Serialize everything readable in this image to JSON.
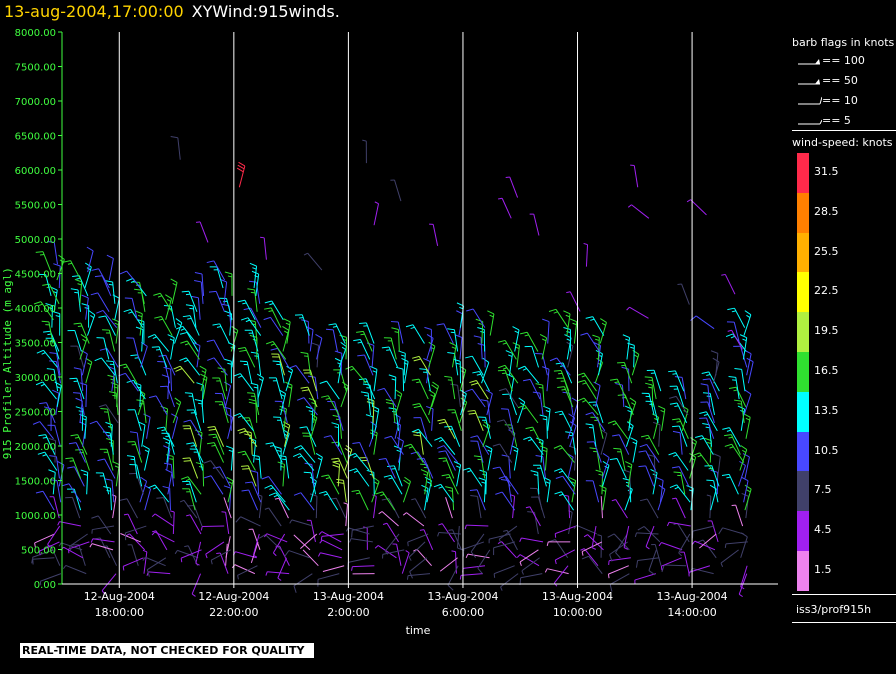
{
  "header": {
    "timestamp": "13-aug-2004,17:00:00",
    "plot_name": "XYWind:915winds."
  },
  "legend": {
    "barb_title": "barb flags in knots",
    "barbs": [
      {
        "label": "== 100",
        "icon": "pennant-barb-icon"
      },
      {
        "label": "== 50",
        "icon": "pennant-barb-icon"
      },
      {
        "label": "== 10",
        "icon": "full-barb-icon"
      },
      {
        "label": "== 5",
        "icon": "half-barb-icon"
      }
    ],
    "speed_title": "wind-speed: knots",
    "speed_levels": [
      {
        "label": "31.5",
        "color": "#ff2a4a"
      },
      {
        "label": "28.5",
        "color": "#ff8000"
      },
      {
        "label": "25.5",
        "color": "#ffb000"
      },
      {
        "label": "22.5",
        "color": "#ffff00"
      },
      {
        "label": "19.5",
        "color": "#b0f040"
      },
      {
        "label": "16.5",
        "color": "#30e030"
      },
      {
        "label": "13.5",
        "color": "#00ffff"
      },
      {
        "label": "10.5",
        "color": "#4848ff"
      },
      {
        "label": "7.5",
        "color": "#40406a"
      },
      {
        "label": "4.5",
        "color": "#a020f0"
      },
      {
        "label": "1.5",
        "color": "#ee82ee"
      }
    ]
  },
  "footer": {
    "source_id": "iss3/prof915h",
    "notice": "REAL-TIME DATA, NOT CHECKED FOR QUALITY"
  },
  "chart_data": {
    "type": "scatter",
    "title": "13-aug-2004,17:00:00 XYWind:915winds.",
    "xlabel": "time",
    "ylabel": "915 Profiler Altitude (m agl)",
    "ylim": [
      0,
      8000
    ],
    "yticks": [
      "0.00",
      "500.00",
      "1000.00",
      "1500.00",
      "2000.00",
      "2500.00",
      "3000.00",
      "3500.00",
      "4000.00",
      "4500.00",
      "5000.00",
      "5500.00",
      "6000.00",
      "6500.00",
      "7000.00",
      "7500.00",
      "8000.00"
    ],
    "xlim": [
      "12-Aug-2004 16:00:00",
      "13-Aug-2004 17:00:00"
    ],
    "xticks": [
      {
        "date": "12-Aug-2004",
        "time": "18:00:00"
      },
      {
        "date": "12-Aug-2004",
        "time": "22:00:00"
      },
      {
        "date": "13-Aug-2004",
        "time": "2:00:00"
      },
      {
        "date": "13-Aug-2004",
        "time": "6:00:00"
      },
      {
        "date": "13-Aug-2004",
        "time": "10:00:00"
      },
      {
        "date": "13-Aug-2004",
        "time": "14:00:00"
      }
    ],
    "grid": "vertical",
    "colors": {
      "axis": "#40ff40",
      "grid": "#ffffff"
    },
    "series": [
      {
        "columns": [
          {
            "time": "12-Aug-2004 16:00:00",
            "top_m": 4700
          },
          {
            "time": "12-Aug-2004 17:00:00",
            "top_m": 4600
          },
          {
            "time": "12-Aug-2004 18:00:00",
            "top_m": 4500
          },
          {
            "time": "12-Aug-2004 19:00:00",
            "top_m": 4300
          },
          {
            "time": "12-Aug-2004 20:00:00",
            "top_m": 4100
          },
          {
            "time": "12-Aug-2004 21:00:00",
            "top_m": 4200
          },
          {
            "time": "12-Aug-2004 22:00:00",
            "top_m": 4500
          },
          {
            "time": "12-Aug-2004 23:00:00",
            "top_m": 4400
          },
          {
            "time": "13-Aug-2004 00:00:00",
            "top_m": 3900
          },
          {
            "time": "13-Aug-2004 01:00:00",
            "top_m": 3600
          },
          {
            "time": "13-Aug-2004 02:00:00",
            "top_m": 3550
          },
          {
            "time": "13-Aug-2004 03:00:00",
            "top_m": 3550
          },
          {
            "time": "13-Aug-2004 04:00:00",
            "top_m": 3550
          },
          {
            "time": "13-Aug-2004 05:00:00",
            "top_m": 3550
          },
          {
            "time": "13-Aug-2004 06:00:00",
            "top_m": 3800
          },
          {
            "time": "13-Aug-2004 07:00:00",
            "top_m": 3750
          },
          {
            "time": "13-Aug-2004 08:00:00",
            "top_m": 3400
          },
          {
            "time": "13-Aug-2004 09:00:00",
            "top_m": 3550
          },
          {
            "time": "13-Aug-2004 10:00:00",
            "top_m": 3800
          },
          {
            "time": "13-Aug-2004 11:00:00",
            "top_m": 3700
          },
          {
            "time": "13-Aug-2004 12:00:00",
            "top_m": 3300
          },
          {
            "time": "13-Aug-2004 13:00:00",
            "top_m": 2900
          },
          {
            "time": "13-Aug-2004 14:00:00",
            "top_m": 2800
          },
          {
            "time": "13-Aug-2004 15:00:00",
            "top_m": 3100
          },
          {
            "time": "13-Aug-2004 16:00:00",
            "top_m": 3800
          }
        ],
        "gate_spacing_m": 115,
        "lowest_gate_m": 150
      }
    ]
  }
}
